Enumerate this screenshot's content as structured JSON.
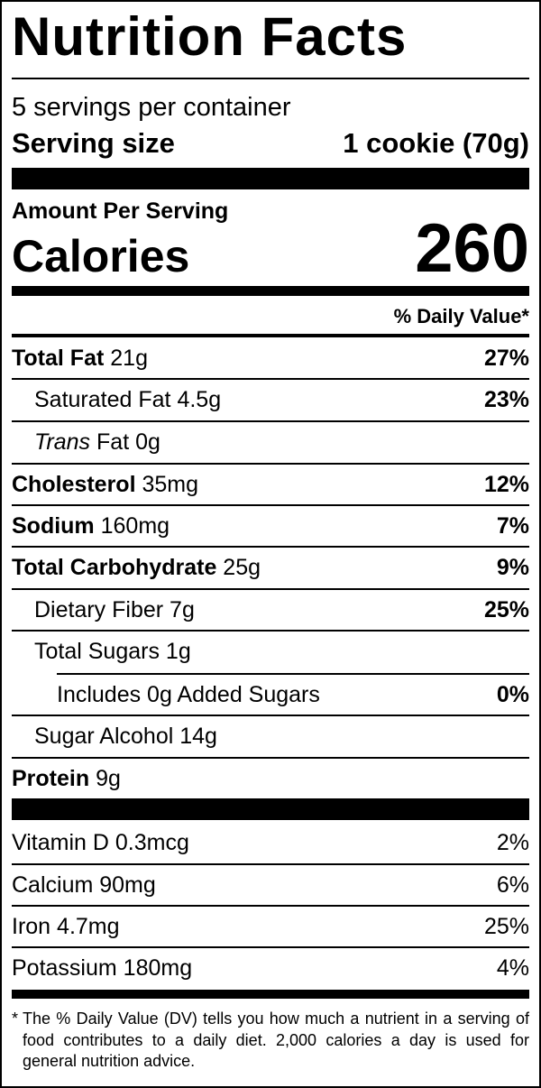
{
  "header": {
    "title": "Nutrition Facts",
    "servings": "5 servings per container",
    "serving_size_label": "Serving size",
    "serving_size": "1 cookie (70g)"
  },
  "calories": {
    "label_top": "Amount Per Serving",
    "label": "Calories",
    "value": "260"
  },
  "dv_heading": "% Daily Value*",
  "nutrients": [
    {
      "name": "Total Fat",
      "amount": "21g",
      "dv": "27%"
    },
    {
      "name": "Saturated Fat",
      "amount": "4.5g",
      "dv": "23%"
    },
    {
      "italic": "Trans",
      "name": "Fat",
      "amount": "0g"
    },
    {
      "name": "Cholesterol",
      "amount": "35mg",
      "dv": "12%"
    },
    {
      "name": "Sodium",
      "amount": "160mg",
      "dv": "7%"
    },
    {
      "name": "Total Carbohydrate",
      "amount": "25g",
      "dv": "9%"
    },
    {
      "name": "Dietary Fiber",
      "amount": "7g",
      "dv": "25%"
    },
    {
      "name": "Total Sugars",
      "amount": "1g"
    },
    {
      "name": "Includes 0g Added Sugars",
      "dv": "0%"
    },
    {
      "name": "Sugar Alcohol",
      "amount": "14g"
    },
    {
      "name": "Protein",
      "amount": "9g"
    }
  ],
  "vitamins": [
    {
      "name": "Vitamin D",
      "amount": "0.3mcg",
      "dv": "2%"
    },
    {
      "name": "Calcium",
      "amount": "90mg",
      "dv": "6%"
    },
    {
      "name": "Iron",
      "amount": "4.7mg",
      "dv": "25%"
    },
    {
      "name": "Potassium",
      "amount": "180mg",
      "dv": "4%"
    }
  ],
  "footnote": {
    "marker": "*",
    "text": "The % Daily Value (DV) tells you how much a nutrient in a serving of food contributes to a daily diet. 2,000 calories a day is used for general nutrition advice."
  }
}
